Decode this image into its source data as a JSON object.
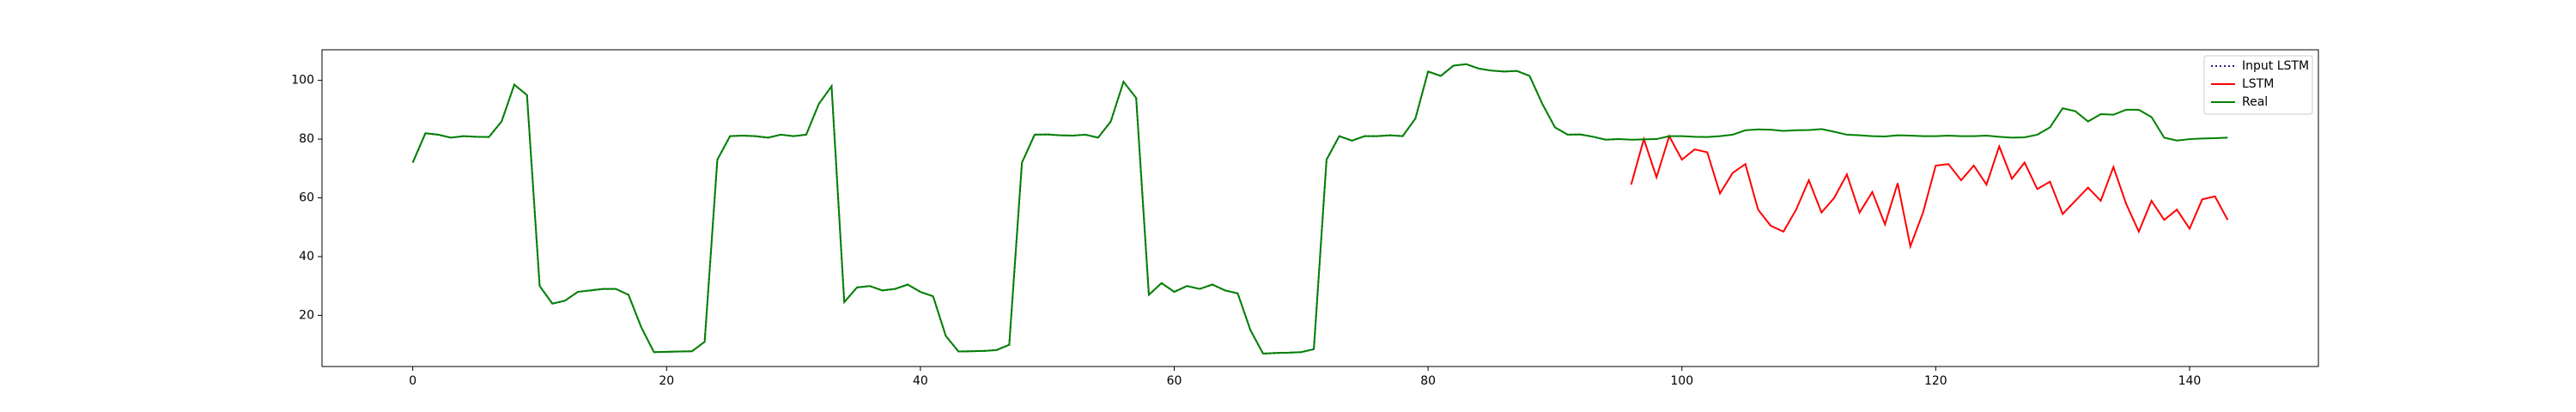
{
  "chart_data": {
    "type": "line",
    "x": [
      0,
      1,
      2,
      3,
      4,
      5,
      6,
      7,
      8,
      9,
      10,
      11,
      12,
      13,
      14,
      15,
      16,
      17,
      18,
      19,
      20,
      21,
      22,
      23,
      24,
      25,
      26,
      27,
      28,
      29,
      30,
      31,
      32,
      33,
      34,
      35,
      36,
      37,
      38,
      39,
      40,
      41,
      42,
      43,
      44,
      45,
      46,
      47,
      48,
      49,
      50,
      51,
      52,
      53,
      54,
      55,
      56,
      57,
      58,
      59,
      60,
      61,
      62,
      63,
      64,
      65,
      66,
      67,
      68,
      69,
      70,
      71,
      72,
      73,
      74,
      75,
      76,
      77,
      78,
      79,
      80,
      81,
      82,
      83,
      84,
      85,
      86,
      87,
      88,
      89,
      90,
      91,
      92,
      93,
      94,
      95,
      96,
      97,
      98,
      99,
      100,
      101,
      102,
      103,
      104,
      105,
      106,
      107,
      108,
      109,
      110,
      111,
      112,
      113,
      114,
      115,
      116,
      117,
      118,
      119,
      120,
      121,
      122,
      123,
      124,
      125,
      126,
      127,
      128,
      129,
      130,
      131,
      132,
      133,
      134,
      135,
      136,
      137,
      138,
      139,
      140,
      141,
      142,
      143
    ],
    "series": [
      {
        "name": "Input LSTM",
        "color": "#1f1f8f",
        "dash": true,
        "values": [
          72,
          82,
          81.5,
          80.5,
          81,
          80.8,
          80.7,
          86,
          98.5,
          95,
          30,
          24,
          25,
          28,
          28.5,
          29,
          29,
          27,
          16,
          7.5,
          7.6,
          7.7,
          7.8,
          11,
          73,
          81,
          81.2,
          81,
          80.5,
          81.5,
          81,
          81.5,
          92,
          98,
          24.5,
          29.5,
          30,
          28.5,
          29,
          30.5,
          28,
          26.5,
          13,
          7.7,
          7.8,
          7.9,
          8.2,
          10,
          72,
          81.5,
          81.6,
          81.3,
          81.2,
          81.5,
          80.5,
          86,
          99.5,
          94,
          27,
          31,
          28,
          30,
          29,
          30.5,
          28.5,
          27.5,
          15,
          7,
          7.2,
          7.3,
          7.5,
          8.5,
          73,
          81,
          79.5,
          81,
          81,
          81.3,
          81,
          87,
          103,
          101.5,
          105,
          105.5,
          104,
          103.3,
          103,
          103.2,
          101.5,
          92,
          84,
          81.5,
          81.6,
          80.8,
          79.8,
          80,
          null,
          null,
          null,
          null,
          null,
          null,
          null,
          null,
          null,
          null,
          null,
          null,
          null,
          null,
          null,
          null,
          null,
          null,
          null,
          null,
          null,
          null,
          null,
          null,
          null,
          null,
          null,
          null,
          null,
          null,
          null,
          null,
          null,
          null,
          null,
          null,
          null,
          null,
          null,
          null,
          null,
          null,
          null,
          null,
          null,
          null,
          null,
          null
        ]
      },
      {
        "name": "LSTM",
        "color": "#ff0000",
        "dash": false,
        "values": [
          null,
          null,
          null,
          null,
          null,
          null,
          null,
          null,
          null,
          null,
          null,
          null,
          null,
          null,
          null,
          null,
          null,
          null,
          null,
          null,
          null,
          null,
          null,
          null,
          null,
          null,
          null,
          null,
          null,
          null,
          null,
          null,
          null,
          null,
          null,
          null,
          null,
          null,
          null,
          null,
          null,
          null,
          null,
          null,
          null,
          null,
          null,
          null,
          null,
          null,
          null,
          null,
          null,
          null,
          null,
          null,
          null,
          null,
          null,
          null,
          null,
          null,
          null,
          null,
          null,
          null,
          null,
          null,
          null,
          null,
          null,
          null,
          null,
          null,
          null,
          null,
          null,
          null,
          null,
          null,
          null,
          null,
          null,
          null,
          null,
          null,
          null,
          null,
          null,
          null,
          null,
          null,
          null,
          null,
          null,
          null,
          64.5,
          80,
          67,
          81,
          73,
          76.5,
          75.5,
          61.5,
          68.5,
          71.5,
          56,
          50.5,
          48.5,
          56,
          66,
          55,
          60,
          68,
          55,
          62,
          51,
          65,
          43.5,
          55,
          71,
          71.5,
          66,
          71,
          64.5,
          77.5,
          66.5,
          72,
          63,
          65.5,
          54.5,
          59,
          63.5,
          59,
          70.5,
          58,
          48.5,
          59,
          52.5,
          56,
          49.5,
          59.5,
          60.5,
          52.5
        ]
      },
      {
        "name": "Real",
        "color": "#008000",
        "dash": false,
        "values": [
          72,
          82,
          81.5,
          80.5,
          81,
          80.8,
          80.7,
          86,
          98.5,
          95,
          30,
          24,
          25,
          28,
          28.5,
          29,
          29,
          27,
          16,
          7.5,
          7.6,
          7.7,
          7.8,
          11,
          73,
          81,
          81.2,
          81,
          80.5,
          81.5,
          81,
          81.5,
          92,
          98,
          24.5,
          29.5,
          30,
          28.5,
          29,
          30.5,
          28,
          26.5,
          13,
          7.7,
          7.8,
          7.9,
          8.2,
          10,
          72,
          81.5,
          81.6,
          81.3,
          81.2,
          81.5,
          80.5,
          86,
          99.5,
          94,
          27,
          31,
          28,
          30,
          29,
          30.5,
          28.5,
          27.5,
          15,
          7,
          7.2,
          7.3,
          7.5,
          8.5,
          73,
          81,
          79.5,
          81,
          81,
          81.3,
          81,
          87,
          103,
          101.5,
          105,
          105.5,
          104,
          103.3,
          103,
          103.2,
          101.5,
          92,
          84,
          81.5,
          81.6,
          80.8,
          79.8,
          80,
          79.8,
          79.9,
          80,
          81,
          81,
          80.8,
          80.7,
          81,
          81.5,
          83,
          83.3,
          83.2,
          82.8,
          83,
          83.1,
          83.4,
          82.5,
          81.5,
          81.3,
          81,
          80.9,
          81.3,
          81.2,
          81,
          81,
          81.2,
          81,
          81,
          81.2,
          80.8,
          80.5,
          80.6,
          81.5,
          84,
          90.5,
          89.5,
          86,
          88.5,
          88.3,
          90,
          90,
          87.5,
          80.5,
          79.5,
          80,
          80.2,
          80.3,
          80.5
        ]
      }
    ],
    "xlim": [
      -7.15,
      150.15
    ],
    "xticks": [
      0,
      20,
      40,
      60,
      80,
      100,
      120,
      140
    ],
    "ylim": [
      2.6,
      110.4
    ],
    "yticks": [
      20,
      40,
      60,
      80,
      100
    ],
    "legend": "upper right"
  }
}
